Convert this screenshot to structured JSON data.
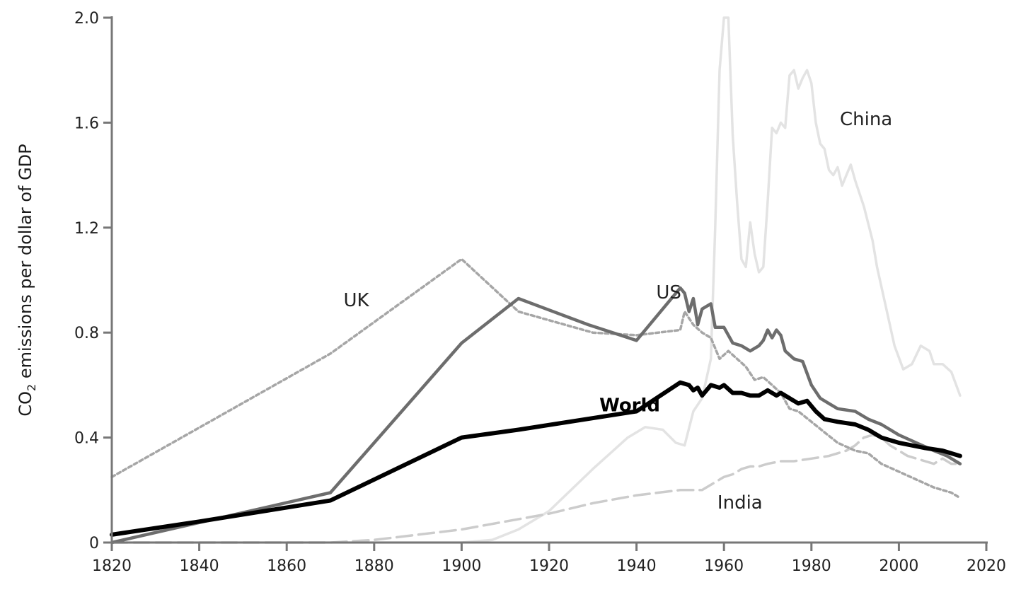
{
  "chart_data": {
    "type": "line",
    "ylabel_parts": {
      "pre": "CO",
      "sub": "2",
      "post": " emissions per dollar of GDP"
    },
    "xlabel": "",
    "xlim": [
      1820,
      2020
    ],
    "ylim": [
      0,
      2.0
    ],
    "x_ticks": [
      1820,
      1840,
      1860,
      1880,
      1900,
      1920,
      1940,
      1960,
      1980,
      2000,
      2020
    ],
    "y_ticks": [
      0,
      0.4,
      0.8,
      1.2,
      1.6,
      2.0
    ],
    "y_tick_labels": [
      "0",
      "0.4",
      "0.8",
      "1.2",
      "1.6",
      "2.0"
    ],
    "grid": false,
    "legend": "direct labels",
    "series": [
      {
        "name": "China",
        "color": "#e3e3e3",
        "style": "solid",
        "points": [
          [
            1820,
            0
          ],
          [
            1900,
            0
          ],
          [
            1907,
            0.01
          ],
          [
            1913,
            0.05
          ],
          [
            1920,
            0.12
          ],
          [
            1930,
            0.28
          ],
          [
            1938,
            0.4
          ],
          [
            1942,
            0.44
          ],
          [
            1946,
            0.43
          ],
          [
            1949,
            0.38
          ],
          [
            1951,
            0.37
          ],
          [
            1953,
            0.5
          ],
          [
            1955,
            0.55
          ],
          [
            1957,
            0.7
          ],
          [
            1958,
            1.2
          ],
          [
            1959,
            1.8
          ],
          [
            1960,
            2.0
          ],
          [
            1961,
            2.0
          ],
          [
            1962,
            1.55
          ],
          [
            1963,
            1.3
          ],
          [
            1964,
            1.08
          ],
          [
            1965,
            1.05
          ],
          [
            1966,
            1.22
          ],
          [
            1967,
            1.1
          ],
          [
            1968,
            1.03
          ],
          [
            1969,
            1.05
          ],
          [
            1970,
            1.3
          ],
          [
            1971,
            1.58
          ],
          [
            1972,
            1.56
          ],
          [
            1973,
            1.6
          ],
          [
            1974,
            1.58
          ],
          [
            1975,
            1.78
          ],
          [
            1976,
            1.8
          ],
          [
            1977,
            1.73
          ],
          [
            1978,
            1.77
          ],
          [
            1979,
            1.8
          ],
          [
            1980,
            1.75
          ],
          [
            1981,
            1.6
          ],
          [
            1982,
            1.52
          ],
          [
            1983,
            1.5
          ],
          [
            1984,
            1.42
          ],
          [
            1985,
            1.4
          ],
          [
            1986,
            1.43
          ],
          [
            1987,
            1.36
          ],
          [
            1988,
            1.4
          ],
          [
            1989,
            1.44
          ],
          [
            1990,
            1.38
          ],
          [
            1992,
            1.28
          ],
          [
            1994,
            1.15
          ],
          [
            1995,
            1.05
          ],
          [
            1997,
            0.9
          ],
          [
            1999,
            0.75
          ],
          [
            2001,
            0.66
          ],
          [
            2003,
            0.68
          ],
          [
            2005,
            0.75
          ],
          [
            2007,
            0.73
          ],
          [
            2008,
            0.68
          ],
          [
            2010,
            0.68
          ],
          [
            2012,
            0.65
          ],
          [
            2014,
            0.56
          ]
        ]
      },
      {
        "name": "India",
        "color": "#cccccc",
        "style": "dashed",
        "points": [
          [
            1820,
            0
          ],
          [
            1870,
            0
          ],
          [
            1880,
            0.01
          ],
          [
            1890,
            0.03
          ],
          [
            1900,
            0.05
          ],
          [
            1910,
            0.08
          ],
          [
            1920,
            0.11
          ],
          [
            1930,
            0.15
          ],
          [
            1940,
            0.18
          ],
          [
            1950,
            0.2
          ],
          [
            1955,
            0.2
          ],
          [
            1958,
            0.23
          ],
          [
            1960,
            0.25
          ],
          [
            1962,
            0.26
          ],
          [
            1964,
            0.28
          ],
          [
            1966,
            0.29
          ],
          [
            1968,
            0.29
          ],
          [
            1970,
            0.3
          ],
          [
            1973,
            0.31
          ],
          [
            1976,
            0.31
          ],
          [
            1980,
            0.32
          ],
          [
            1984,
            0.33
          ],
          [
            1988,
            0.35
          ],
          [
            1990,
            0.37
          ],
          [
            1992,
            0.4
          ],
          [
            1994,
            0.41
          ],
          [
            1996,
            0.4
          ],
          [
            1998,
            0.37
          ],
          [
            2000,
            0.35
          ],
          [
            2002,
            0.33
          ],
          [
            2004,
            0.32
          ],
          [
            2006,
            0.31
          ],
          [
            2008,
            0.3
          ],
          [
            2010,
            0.32
          ],
          [
            2012,
            0.3
          ],
          [
            2014,
            0.3
          ]
        ]
      },
      {
        "name": "UK",
        "color": "#a6a6a6",
        "style": "dotted",
        "points": [
          [
            1820,
            0.25
          ],
          [
            1870,
            0.72
          ],
          [
            1900,
            1.08
          ],
          [
            1913,
            0.88
          ],
          [
            1930,
            0.8
          ],
          [
            1940,
            0.79
          ],
          [
            1950,
            0.81
          ],
          [
            1951,
            0.88
          ],
          [
            1953,
            0.83
          ],
          [
            1955,
            0.8
          ],
          [
            1957,
            0.78
          ],
          [
            1959,
            0.7
          ],
          [
            1961,
            0.73
          ],
          [
            1963,
            0.7
          ],
          [
            1965,
            0.67
          ],
          [
            1967,
            0.62
          ],
          [
            1969,
            0.63
          ],
          [
            1971,
            0.6
          ],
          [
            1973,
            0.57
          ],
          [
            1975,
            0.51
          ],
          [
            1977,
            0.5
          ],
          [
            1980,
            0.46
          ],
          [
            1983,
            0.42
          ],
          [
            1986,
            0.38
          ],
          [
            1990,
            0.35
          ],
          [
            1993,
            0.34
          ],
          [
            1996,
            0.3
          ],
          [
            2000,
            0.27
          ],
          [
            2004,
            0.24
          ],
          [
            2008,
            0.21
          ],
          [
            2012,
            0.19
          ],
          [
            2014,
            0.17
          ]
        ]
      },
      {
        "name": "US",
        "color": "#6d6d6d",
        "style": "solid",
        "points": [
          [
            1820,
            0
          ],
          [
            1870,
            0.19
          ],
          [
            1900,
            0.76
          ],
          [
            1913,
            0.93
          ],
          [
            1929,
            0.83
          ],
          [
            1940,
            0.77
          ],
          [
            1950,
            0.97
          ],
          [
            1951,
            0.95
          ],
          [
            1952,
            0.88
          ],
          [
            1953,
            0.93
          ],
          [
            1954,
            0.83
          ],
          [
            1955,
            0.89
          ],
          [
            1957,
            0.91
          ],
          [
            1958,
            0.82
          ],
          [
            1960,
            0.82
          ],
          [
            1962,
            0.76
          ],
          [
            1964,
            0.75
          ],
          [
            1966,
            0.73
          ],
          [
            1968,
            0.75
          ],
          [
            1969,
            0.77
          ],
          [
            1970,
            0.81
          ],
          [
            1971,
            0.78
          ],
          [
            1972,
            0.81
          ],
          [
            1973,
            0.79
          ],
          [
            1974,
            0.73
          ],
          [
            1976,
            0.7
          ],
          [
            1978,
            0.69
          ],
          [
            1980,
            0.6
          ],
          [
            1982,
            0.55
          ],
          [
            1984,
            0.53
          ],
          [
            1986,
            0.51
          ],
          [
            1990,
            0.5
          ],
          [
            1993,
            0.47
          ],
          [
            1996,
            0.45
          ],
          [
            2000,
            0.41
          ],
          [
            2004,
            0.38
          ],
          [
            2008,
            0.35
          ],
          [
            2011,
            0.33
          ],
          [
            2014,
            0.3
          ]
        ]
      },
      {
        "name": "World",
        "color": "#000000",
        "style": "solid",
        "label_bold": true,
        "points": [
          [
            1820,
            0.03
          ],
          [
            1840,
            0.08
          ],
          [
            1870,
            0.16
          ],
          [
            1900,
            0.4
          ],
          [
            1913,
            0.43
          ],
          [
            1940,
            0.5
          ],
          [
            1950,
            0.61
          ],
          [
            1952,
            0.6
          ],
          [
            1953,
            0.58
          ],
          [
            1954,
            0.59
          ],
          [
            1955,
            0.56
          ],
          [
            1957,
            0.6
          ],
          [
            1959,
            0.59
          ],
          [
            1960,
            0.6
          ],
          [
            1962,
            0.57
          ],
          [
            1964,
            0.57
          ],
          [
            1966,
            0.56
          ],
          [
            1968,
            0.56
          ],
          [
            1970,
            0.58
          ],
          [
            1972,
            0.56
          ],
          [
            1973,
            0.57
          ],
          [
            1975,
            0.55
          ],
          [
            1977,
            0.53
          ],
          [
            1979,
            0.54
          ],
          [
            1981,
            0.5
          ],
          [
            1983,
            0.47
          ],
          [
            1986,
            0.46
          ],
          [
            1990,
            0.45
          ],
          [
            1993,
            0.43
          ],
          [
            1996,
            0.4
          ],
          [
            2000,
            0.38
          ],
          [
            2003,
            0.37
          ],
          [
            2006,
            0.36
          ],
          [
            2010,
            0.35
          ],
          [
            2014,
            0.33
          ]
        ]
      }
    ]
  }
}
